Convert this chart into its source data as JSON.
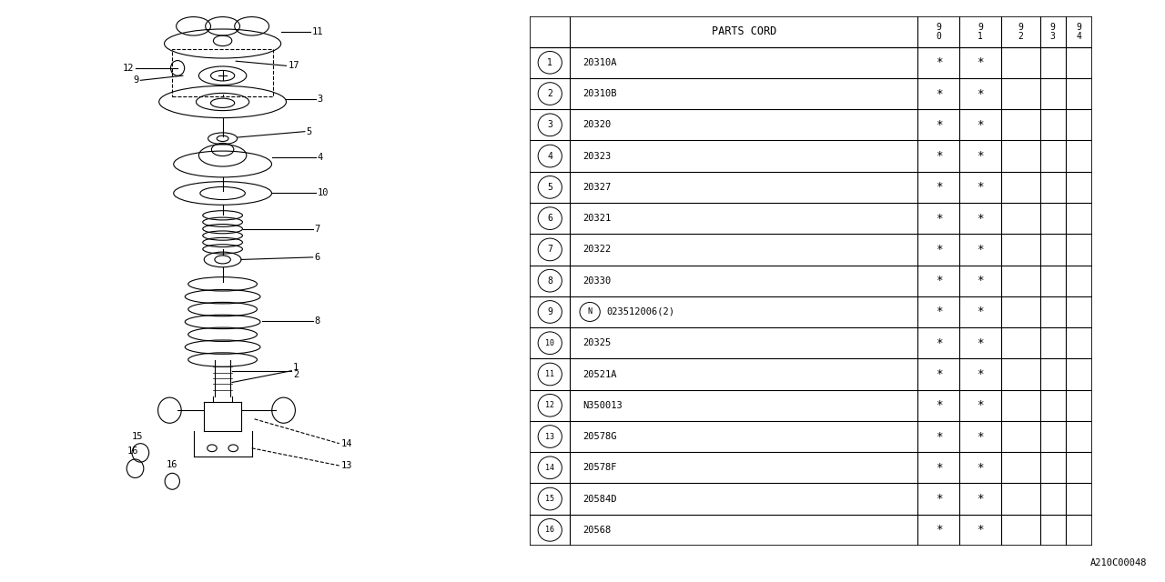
{
  "bg_color": "#ffffff",
  "table": {
    "header": "PARTS CORD",
    "year_cols": [
      "9\n0",
      "9\n1",
      "9\n2",
      "9\n3",
      "9\n4"
    ],
    "rows": [
      {
        "num": "1",
        "code": "20310A",
        "marks": [
          true,
          true,
          false,
          false,
          false
        ]
      },
      {
        "num": "2",
        "code": "20310B",
        "marks": [
          true,
          true,
          false,
          false,
          false
        ]
      },
      {
        "num": "3",
        "code": "20320",
        "marks": [
          true,
          true,
          false,
          false,
          false
        ]
      },
      {
        "num": "4",
        "code": "20323",
        "marks": [
          true,
          true,
          false,
          false,
          false
        ]
      },
      {
        "num": "5",
        "code": "20327",
        "marks": [
          true,
          true,
          false,
          false,
          false
        ]
      },
      {
        "num": "6",
        "code": "20321",
        "marks": [
          true,
          true,
          false,
          false,
          false
        ]
      },
      {
        "num": "7",
        "code": "20322",
        "marks": [
          true,
          true,
          false,
          false,
          false
        ]
      },
      {
        "num": "8",
        "code": "20330",
        "marks": [
          true,
          true,
          false,
          false,
          false
        ]
      },
      {
        "num": "9",
        "code": "023512006(2)",
        "marks": [
          true,
          true,
          false,
          false,
          false
        ],
        "n_prefix": true
      },
      {
        "num": "10",
        "code": "20325",
        "marks": [
          true,
          true,
          false,
          false,
          false
        ]
      },
      {
        "num": "11",
        "code": "20521A",
        "marks": [
          true,
          true,
          false,
          false,
          false
        ]
      },
      {
        "num": "12",
        "code": "N350013",
        "marks": [
          true,
          true,
          false,
          false,
          false
        ]
      },
      {
        "num": "13",
        "code": "20578G",
        "marks": [
          true,
          true,
          false,
          false,
          false
        ]
      },
      {
        "num": "14",
        "code": "20578F",
        "marks": [
          true,
          true,
          false,
          false,
          false
        ]
      },
      {
        "num": "15",
        "code": "20584D",
        "marks": [
          true,
          true,
          false,
          false,
          false
        ]
      },
      {
        "num": "16",
        "code": "20568",
        "marks": [
          true,
          true,
          false,
          false,
          false
        ]
      }
    ]
  },
  "diagram_id": "A210C00048",
  "lc": "#000000",
  "tc": "#000000"
}
